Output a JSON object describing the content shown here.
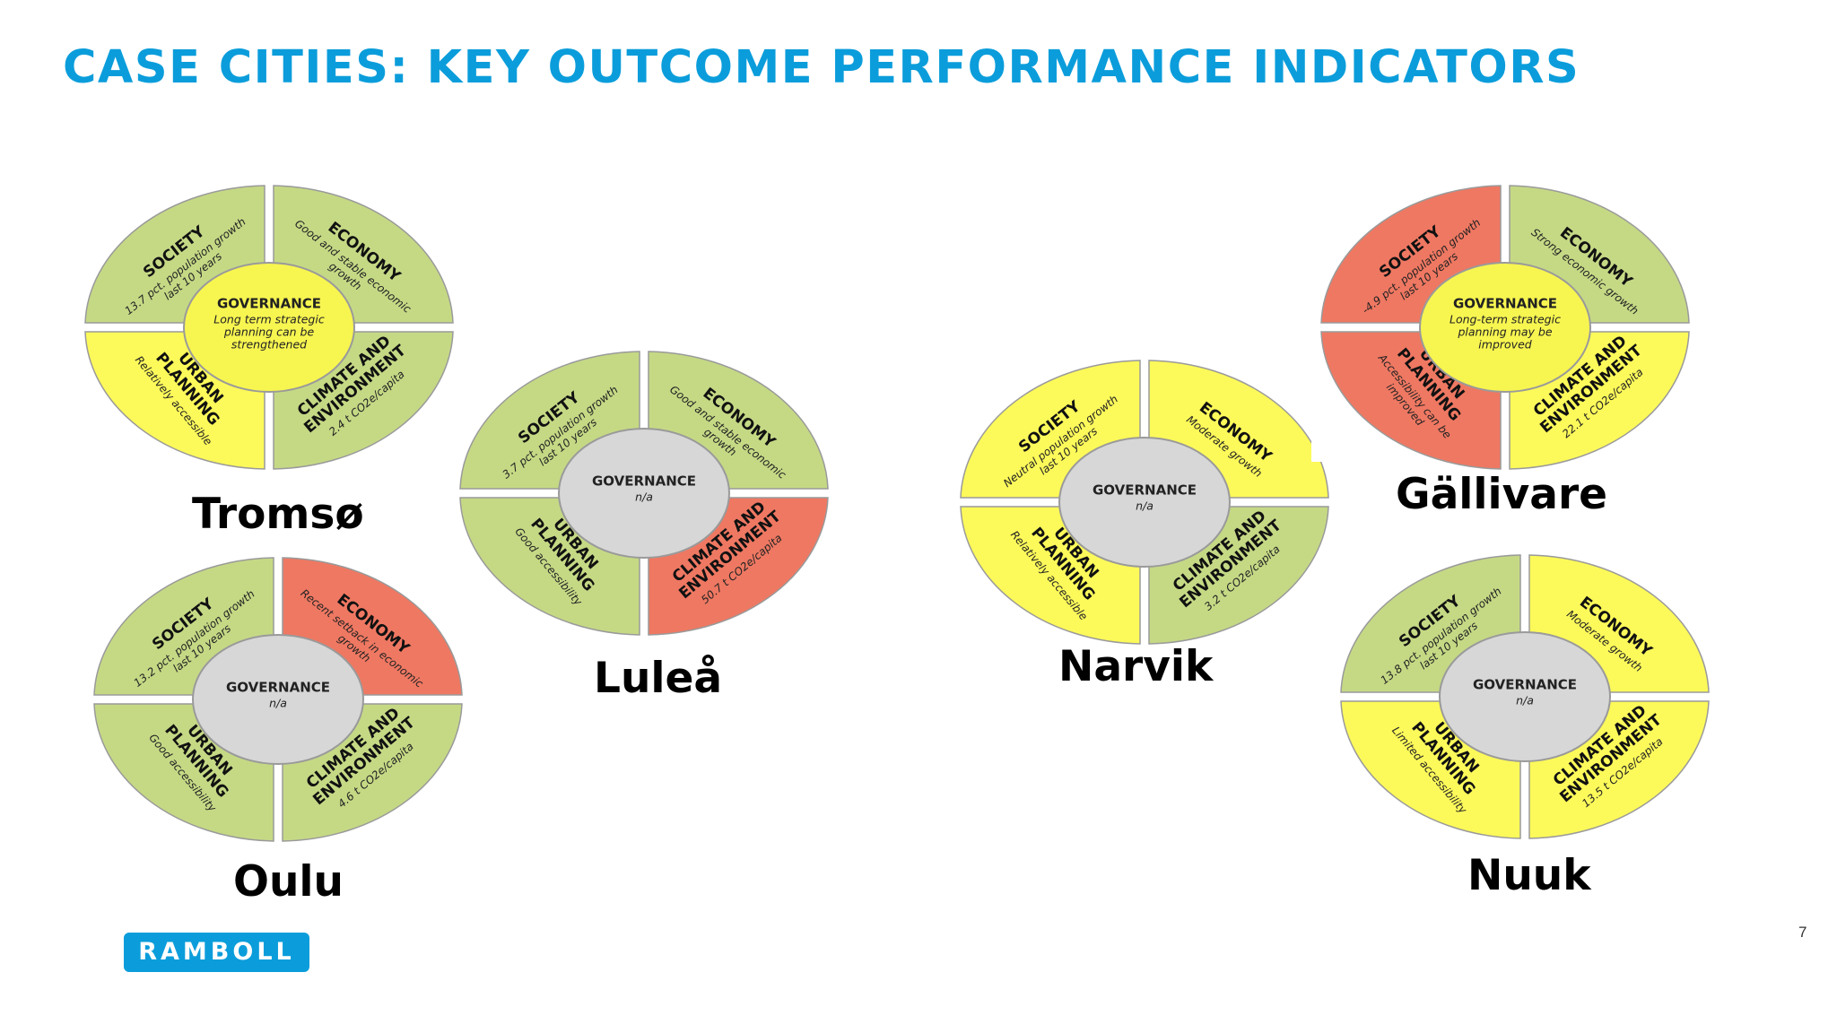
{
  "title": "CASE CITIES: KEY OUTCOME PERFORMANCE INDICATORS",
  "page_number": "7",
  "logo_text": "RAMBOLL",
  "colors": {
    "title": "#0b9ddb",
    "green": "#c5d985",
    "yellow": "#fcf95a",
    "red": "#ef7862",
    "grey": "#d7d7d7",
    "governance_yellow": "#f7f550",
    "logo": "#0b9ddb"
  },
  "cities": [
    {
      "name": "Tromsø",
      "society": {
        "title": "SOCIETY",
        "lines": [
          "13.7 pct. population growth",
          "last 10 years"
        ],
        "status": "green"
      },
      "economy": {
        "title": "ECONOMY",
        "lines": [
          "Good and stable economic",
          "growth"
        ],
        "status": "green"
      },
      "urban": {
        "title": "URBAN\nPLANNING",
        "lines": [
          "Relatively accessible"
        ],
        "status": "yellow"
      },
      "climate": {
        "title": "CLIMATE AND\nENVIRONMENT",
        "lines": [
          "2.4 t CO2e/capita"
        ],
        "status": "green"
      },
      "governance": {
        "title": "GOVERNANCE",
        "lines": [
          "Long term strategic",
          "planning can be",
          "strengthened"
        ],
        "status": "governance_yellow"
      }
    },
    {
      "name": "Luleå",
      "society": {
        "title": "SOCIETY",
        "lines": [
          "3.7 pct. population growth",
          "last 10 years"
        ],
        "status": "green"
      },
      "economy": {
        "title": "ECONOMY",
        "lines": [
          "Good and stable economic",
          "growth"
        ],
        "status": "green"
      },
      "urban": {
        "title": "URBAN\nPLANNING",
        "lines": [
          "Good accessibility"
        ],
        "status": "green"
      },
      "climate": {
        "title": "CLIMATE AND\nENVIRONMENT",
        "lines": [
          "50.7 t CO2e/capita"
        ],
        "status": "red"
      },
      "governance": {
        "title": "GOVERNANCE",
        "lines": [
          "n/a"
        ],
        "status": "grey"
      }
    },
    {
      "name": "Oulu",
      "society": {
        "title": "SOCIETY",
        "lines": [
          "13.2 pct. population growth",
          "last 10 years"
        ],
        "status": "green"
      },
      "economy": {
        "title": "ECONOMY",
        "lines": [
          "Recent setback in economic",
          "growth"
        ],
        "status": "red"
      },
      "urban": {
        "title": "URBAN\nPLANNING",
        "lines": [
          "Good accessibility"
        ],
        "status": "green"
      },
      "climate": {
        "title": "CLIMATE AND\nENVIRONMENT",
        "lines": [
          "4.6 t CO2e/capita"
        ],
        "status": "green"
      },
      "governance": {
        "title": "GOVERNANCE",
        "lines": [
          "n/a"
        ],
        "status": "grey"
      }
    },
    {
      "name": "Narvik",
      "society": {
        "title": "SOCIETY",
        "lines": [
          "Neutral population growth",
          "last 10 years"
        ],
        "status": "yellow"
      },
      "economy": {
        "title": "ECONOMY",
        "lines": [
          "Moderate growth"
        ],
        "status": "yellow"
      },
      "urban": {
        "title": "URBAN\nPLANNING",
        "lines": [
          "Relatively accessible"
        ],
        "status": "yellow"
      },
      "climate": {
        "title": "CLIMATE AND\nENVIRONMENT",
        "lines": [
          "3.2 t CO2e/capita"
        ],
        "status": "green"
      },
      "governance": {
        "title": "GOVERNANCE",
        "lines": [
          "n/a"
        ],
        "status": "grey"
      }
    },
    {
      "name": "Gällivare",
      "society": {
        "title": "SOCIETY",
        "lines": [
          "-4.9 pct. population growth",
          "last 10 years"
        ],
        "status": "red"
      },
      "economy": {
        "title": "ECONOMY",
        "lines": [
          "Strong economic growth"
        ],
        "status": "green"
      },
      "urban": {
        "title": "URBAN\nPLANNING",
        "lines": [
          "Accessibility can be",
          "improved"
        ],
        "status": "red"
      },
      "climate": {
        "title": "CLIMATE AND\nENVIRONMENT",
        "lines": [
          "22.1 t CO2e/capita"
        ],
        "status": "yellow"
      },
      "governance": {
        "title": "GOVERNANCE",
        "lines": [
          "Long-term strategic",
          "planning may be",
          "improved"
        ],
        "status": "governance_yellow"
      }
    },
    {
      "name": "Nuuk",
      "society": {
        "title": "SOCIETY",
        "lines": [
          "13.8 pct. population growth",
          "last 10 years"
        ],
        "status": "green"
      },
      "economy": {
        "title": "ECONOMY",
        "lines": [
          "Moderate growth"
        ],
        "status": "yellow"
      },
      "urban": {
        "title": "URBAN\nPLANNING",
        "lines": [
          "Limited accessibility"
        ],
        "status": "yellow"
      },
      "climate": {
        "title": "CLIMATE AND\nENVIRONMENT",
        "lines": [
          "13.5 t CO2e/capita"
        ],
        "status": "yellow"
      },
      "governance": {
        "title": "GOVERNANCE",
        "lines": [
          "n/a"
        ],
        "status": "grey"
      }
    }
  ]
}
